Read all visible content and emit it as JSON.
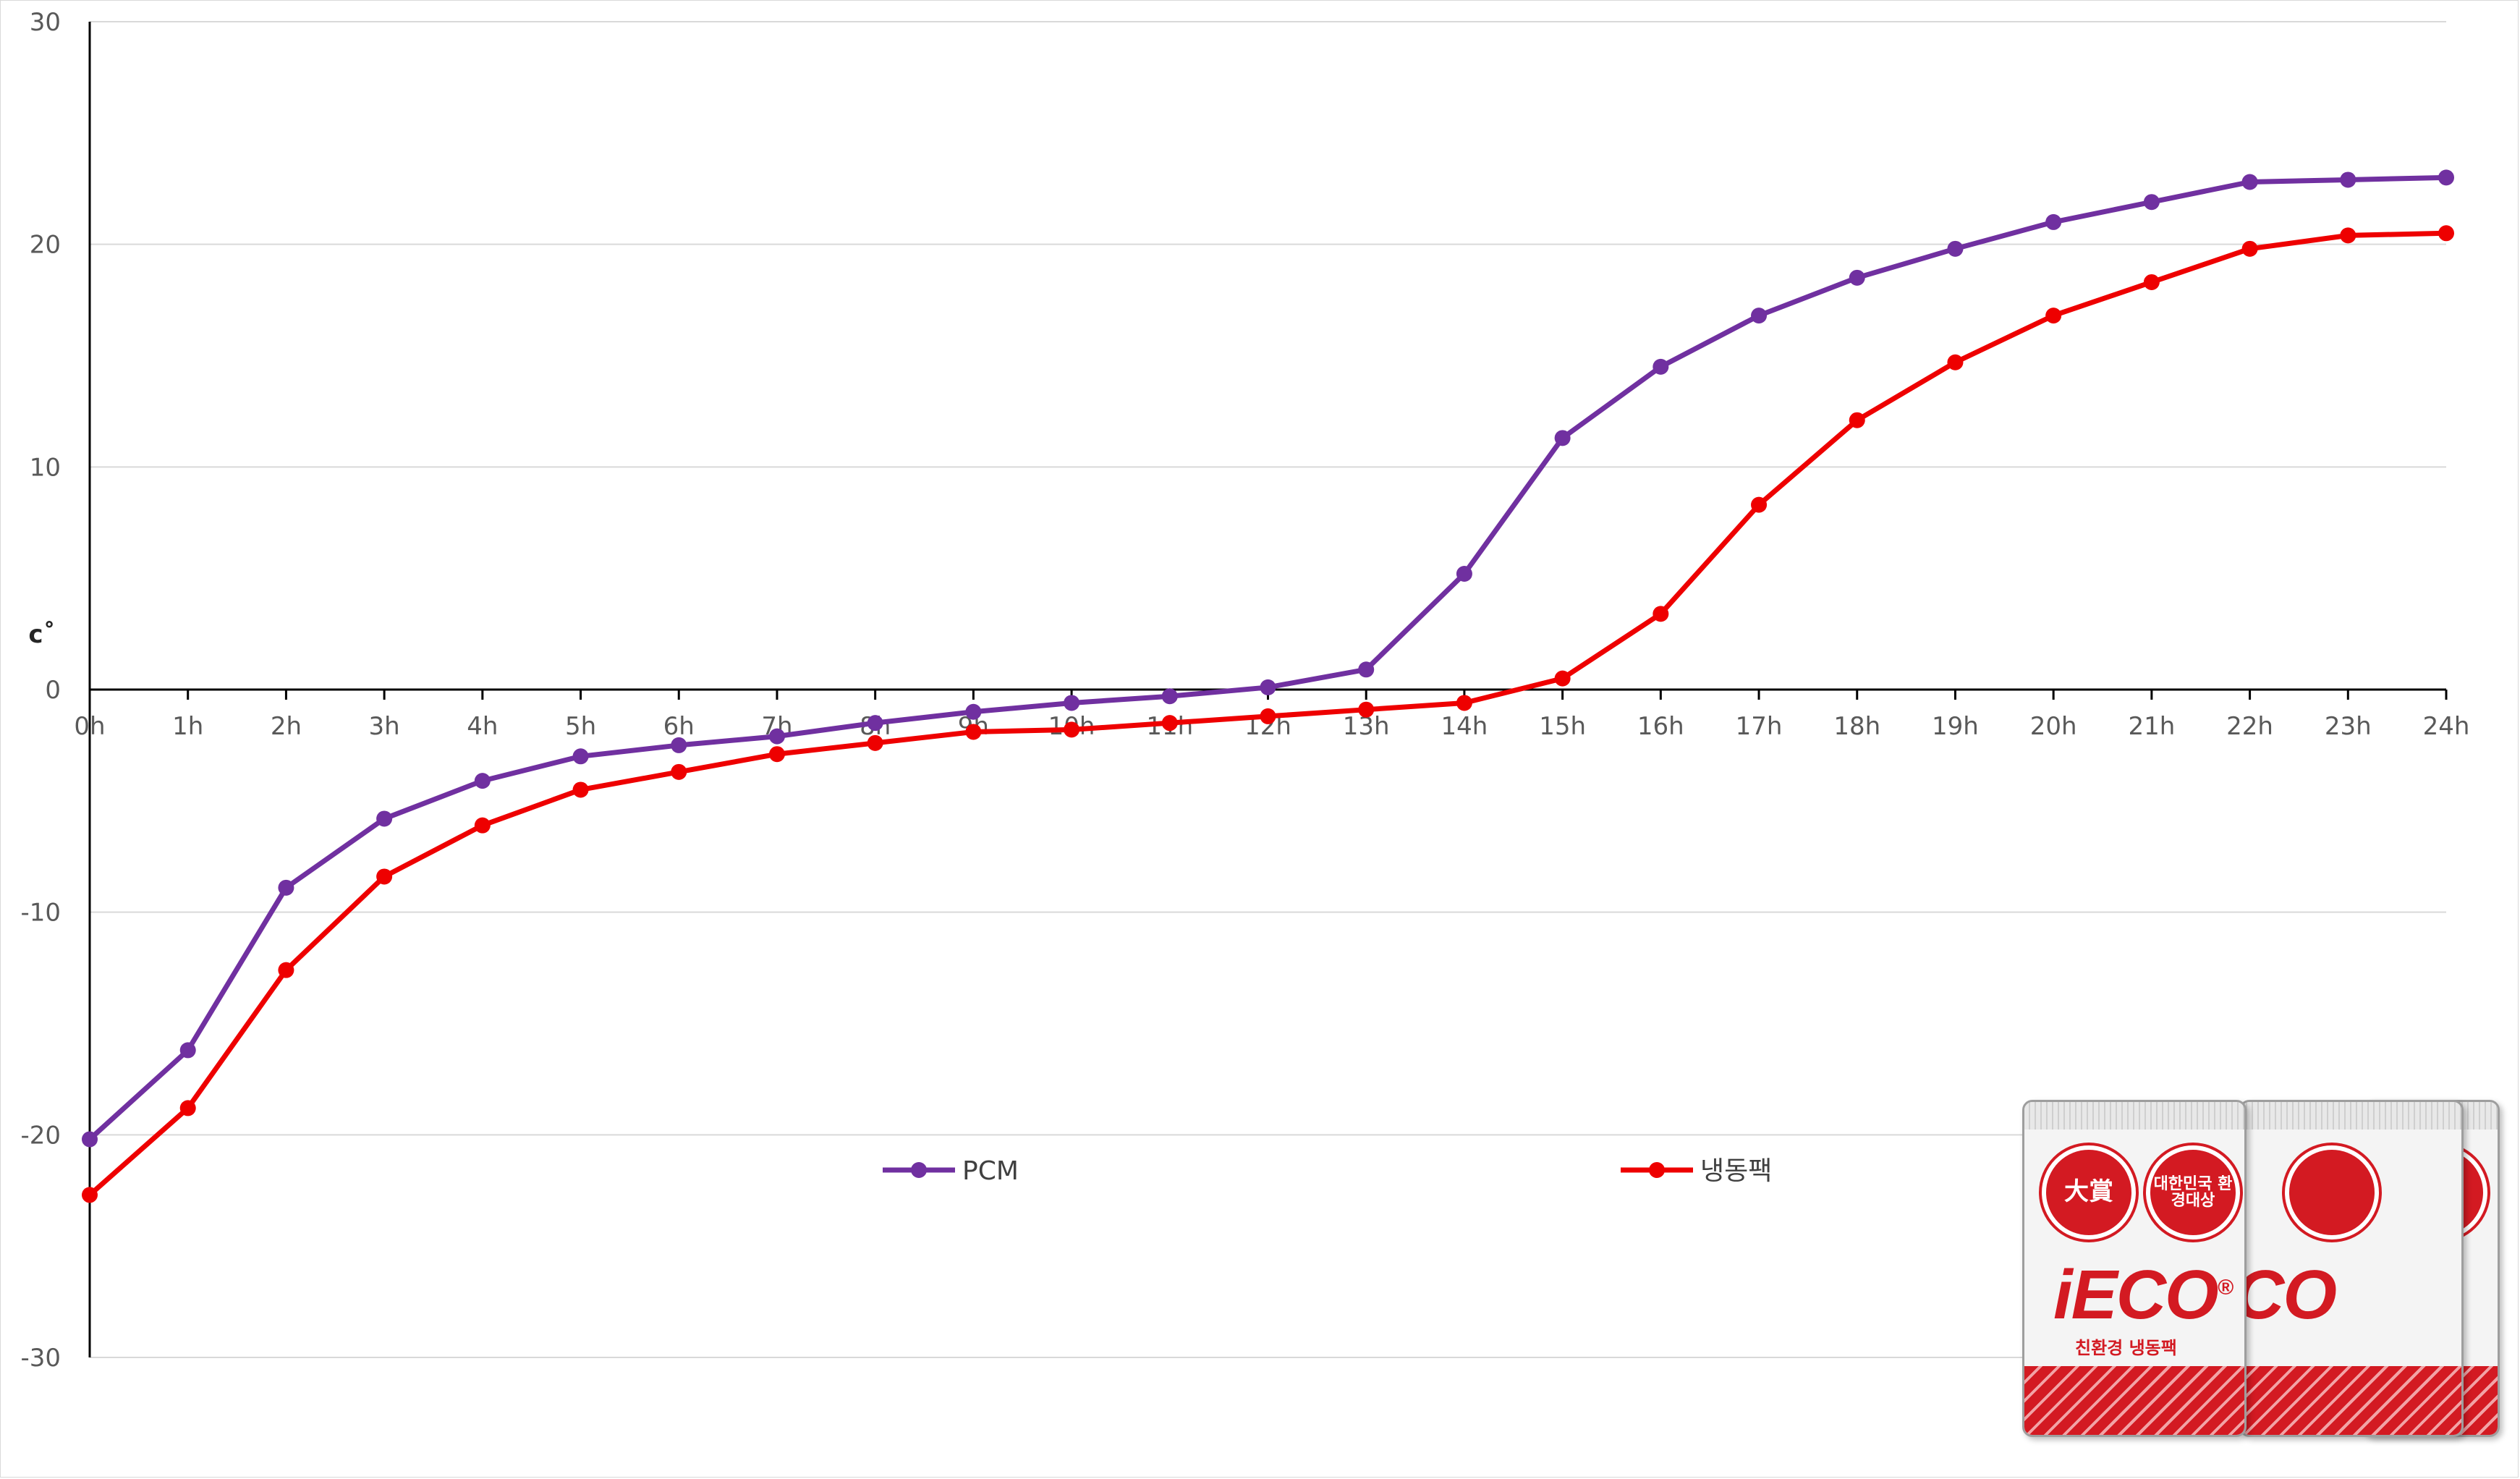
{
  "chart_data": {
    "type": "line",
    "title": "",
    "xlabel": "",
    "ylabel": "c˚",
    "ylim": [
      -30,
      30
    ],
    "yticks": [
      30,
      20,
      10,
      0,
      -10,
      -20,
      -30
    ],
    "grid": true,
    "legend_position": "bottom-center",
    "categories": [
      "0h",
      "1h",
      "2h",
      "3h",
      "4h",
      "5h",
      "6h",
      "7h",
      "8h",
      "9h",
      "10h",
      "11h",
      "12h",
      "13h",
      "14h",
      "15h",
      "16h",
      "17h",
      "18h",
      "19h",
      "20h",
      "21h",
      "22h",
      "23h",
      "24h"
    ],
    "series": [
      {
        "name": "PCM",
        "color": "#7030a0",
        "values": [
          -20.2,
          -16.2,
          -8.9,
          -5.8,
          -4.1,
          -3.0,
          -2.5,
          -2.1,
          -1.5,
          -1.0,
          -0.6,
          -0.3,
          0.1,
          0.9,
          5.2,
          11.3,
          14.5,
          16.8,
          18.5,
          19.8,
          21.0,
          21.9,
          22.8,
          22.9,
          23.0
        ]
      },
      {
        "name": "냉동팩",
        "color": "#ee0000",
        "values": [
          -22.7,
          -18.8,
          -12.6,
          -8.4,
          -6.1,
          -4.5,
          -3.7,
          -2.9,
          -2.4,
          -1.9,
          -1.8,
          -1.5,
          -1.2,
          -0.9,
          -0.6,
          0.5,
          3.4,
          8.3,
          12.1,
          14.7,
          16.8,
          18.3,
          19.8,
          20.4,
          20.5
        ]
      }
    ]
  },
  "product_image": {
    "seal_1": "大賞",
    "seal_2": "대한민국 환경대상",
    "brand": "iECO",
    "brand_registered": "®",
    "brand_sub": "친환경 냉동팩",
    "accent_color": "#d31a22"
  }
}
